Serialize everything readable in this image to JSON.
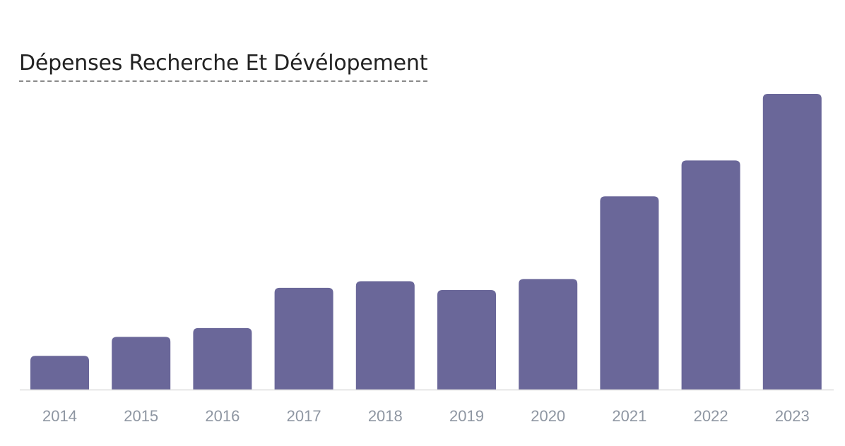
{
  "chart_data": {
    "type": "bar",
    "title": "Dépenses Recherche Et Dévélopement",
    "categories": [
      "2014",
      "2015",
      "2016",
      "2017",
      "2018",
      "2019",
      "2020",
      "2021",
      "2022",
      "2023"
    ],
    "values": [
      4.6,
      7.2,
      8.4,
      13.9,
      14.8,
      13.6,
      15.1,
      26.4,
      31.3,
      40.4
    ],
    "ylim": [
      0,
      40.4
    ],
    "xlabel": "",
    "ylabel": "",
    "grid": false,
    "bar_color": "#6a6799",
    "baseline_color": "#dddddd",
    "tick_color": "#8e96a2"
  }
}
